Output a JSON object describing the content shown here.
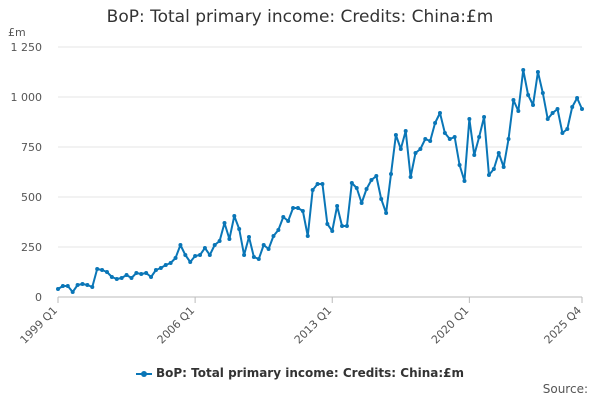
{
  "chart_data": {
    "type": "line",
    "title": "BoP: Total primary income: Credits: China:£m",
    "ylabel": "£m",
    "xlabel": "",
    "ylim": [
      0,
      1250
    ],
    "yticks": [
      0,
      250,
      500,
      750,
      1000,
      1250
    ],
    "ytick_labels": [
      "0",
      "250",
      "500",
      "750",
      "1 000",
      "1 250"
    ],
    "xticks": [
      "1999 Q1",
      "2006 Q1",
      "2013 Q1",
      "2020 Q1",
      "2025 Q4"
    ],
    "x_start": "1999 Q1",
    "x_end": "2025 Q4",
    "grid": true,
    "legend_position": "bottom-center",
    "color": "#0a76b7",
    "series": [
      {
        "name": "BoP: Total primary income: Credits: China:£m",
        "values": [
          40,
          55,
          55,
          25,
          60,
          65,
          60,
          50,
          140,
          135,
          125,
          100,
          90,
          95,
          110,
          95,
          120,
          115,
          120,
          100,
          135,
          145,
          160,
          170,
          195,
          260,
          210,
          175,
          205,
          210,
          245,
          210,
          260,
          280,
          370,
          290,
          405,
          340,
          210,
          300,
          200,
          190,
          260,
          240,
          305,
          335,
          400,
          380,
          445,
          445,
          430,
          305,
          535,
          565,
          565,
          365,
          330,
          455,
          355,
          355,
          570,
          545,
          470,
          540,
          585,
          605,
          490,
          420,
          615,
          810,
          740,
          830,
          600,
          720,
          740,
          790,
          780,
          870,
          920,
          820,
          790,
          800,
          660,
          580,
          890,
          710,
          800,
          900,
          610,
          640,
          720,
          650,
          790,
          985,
          930,
          1135,
          1010,
          960,
          1125,
          1020,
          890,
          920,
          940,
          820,
          840,
          950,
          995,
          940
        ]
      }
    ]
  },
  "legend": {
    "label": "BoP: Total primary income: Credits: China:£m"
  },
  "source": {
    "label": "Source:"
  }
}
